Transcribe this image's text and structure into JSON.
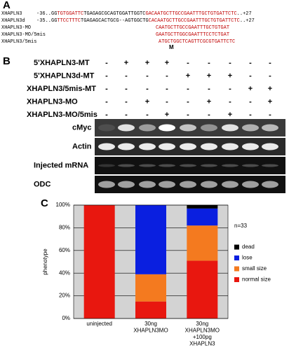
{
  "panel_a": {
    "label": "A",
    "rows": [
      {
        "name": "XHAPLN3",
        "segments": [
          {
            "text": "-36..GG",
            "color": "#000000"
          },
          {
            "text": "TGTGGATTC",
            "color": "#c00000"
          },
          {
            "text": "TGAGAGC",
            "color": "#000000"
          },
          {
            "text": "GCAGTGGATTGGTC",
            "color": "#000000"
          },
          {
            "text": "GACAATGCTTGCCGAATTTGCTGTGATTCTC",
            "color": "#c00000"
          },
          {
            "text": "..+27",
            "color": "#000000"
          }
        ]
      },
      {
        "name": "XHAPLN3d",
        "segments": [
          {
            "text": "-35..GG",
            "color": "#000000"
          },
          {
            "text": "TTCCTTTC",
            "color": "#c00000"
          },
          {
            "text": "TGAGAGCACTGCG--AGTGGCTG",
            "color": "#000000"
          },
          {
            "text": "CACAATGCTTGCCGAATTTGCTGTGATTCTC",
            "color": "#c00000"
          },
          {
            "text": "..+27",
            "color": "#000000"
          }
        ]
      },
      {
        "name": "XHAPLN3-MO",
        "segments": [
          {
            "text": "CAATGCTTGCCGAATTTGCTGTGAT",
            "color": "#c00000"
          }
        ]
      },
      {
        "name": "XHAPLN3-MO/5mis",
        "segments": [
          {
            "text": "GAATGCTTGGCGAATTTCCTCTGAT",
            "color": "#c00000"
          }
        ]
      },
      {
        "name": "XHAPLN3/5mis",
        "segments": [
          {
            "text": "ATGCTGGCTCAGTTCGCGTGATTCTC",
            "color": "#c00000"
          }
        ]
      }
    ],
    "marker": "M"
  },
  "panel_b": {
    "label": "B",
    "conditions": [
      {
        "name": "5'XHAPLN3-MT",
        "cells": [
          "-",
          "+",
          "+",
          "+",
          "-",
          "-",
          "-",
          "-",
          "-"
        ]
      },
      {
        "name": "5'XHAPLN3d-MT",
        "cells": [
          "-",
          "-",
          "-",
          "-",
          "+",
          "+",
          "+",
          "-",
          "-"
        ]
      },
      {
        "name": "XHAPLN3/5mis-MT",
        "cells": [
          "-",
          "-",
          "-",
          "-",
          "-",
          "-",
          "-",
          "+",
          "+"
        ]
      },
      {
        "name": "XHAPLN3-MO",
        "cells": [
          "-",
          "-",
          "+",
          "-",
          "-",
          "+",
          "-",
          "-",
          "+"
        ]
      },
      {
        "name": "XHAPLN3-MO/5mis",
        "cells": [
          "-",
          "-",
          "-",
          "+",
          "-",
          "-",
          "+",
          "-",
          "-"
        ]
      }
    ],
    "blots": [
      "cMyc",
      "Actin",
      "Injected mRNA",
      "ODC"
    ]
  },
  "chart_data": {
    "type": "stacked_bar",
    "panel_label": "C",
    "ylabel": "phenotype",
    "annotation": "n=33",
    "categories": [
      [
        "uninjected"
      ],
      [
        "30ng",
        "XHAPLN3MO"
      ],
      [
        "30ng",
        "XHAPLN3MO",
        "+100pg",
        "XHAPLN3"
      ]
    ],
    "series": [
      {
        "name": "normal size",
        "color": "#e8170f",
        "values": [
          100,
          15,
          51
        ]
      },
      {
        "name": "small size",
        "color": "#f47a1f",
        "values": [
          0,
          24,
          31
        ]
      },
      {
        "name": "lose",
        "color": "#0a1fe0",
        "values": [
          0,
          61,
          15
        ]
      },
      {
        "name": "dead",
        "color": "#000000",
        "values": [
          0,
          0,
          3
        ]
      }
    ],
    "ylim": [
      0,
      100
    ],
    "yticks": [
      {
        "value": 0,
        "label": "0%"
      },
      {
        "value": 20,
        "label": "20%"
      },
      {
        "value": 40,
        "label": "40%"
      },
      {
        "value": 60,
        "label": "60%"
      },
      {
        "value": 80,
        "label": "80%"
      },
      {
        "value": 100,
        "label": "100%"
      }
    ],
    "grid": true,
    "plot_background": "#d3d3d3"
  }
}
